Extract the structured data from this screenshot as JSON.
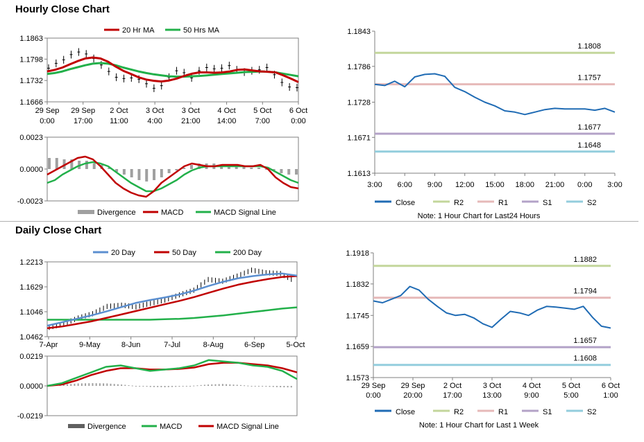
{
  "sections": {
    "hourly_title": "Hourly Close Chart",
    "daily_title": "Daily Close Chart"
  },
  "colors": {
    "ma20_hourly": "#c00000",
    "ma50_hourly": "#22b04a",
    "price": "#000000",
    "divergence": "#a0a0a0",
    "macd_red": "#c00000",
    "macd_green": "#22b04a",
    "day20": "#5b8fd0",
    "day50": "#c00000",
    "day200": "#22b04a",
    "close": "#1f6bb4",
    "r2": "#c3d69b",
    "r1": "#e6b9b8",
    "s1": "#b3a2c7",
    "s2": "#93cddd"
  },
  "chart_data": [
    {
      "id": "hourly_price",
      "type": "line",
      "legend": [
        "20 Hr MA",
        "50 Hrs MA"
      ],
      "yticks": [
        "1.1863",
        "1.1798",
        "1.1732",
        "1.1666"
      ],
      "ylim": [
        1.1666,
        1.1863
      ],
      "xticks": [
        [
          "29 Sep",
          "0:00"
        ],
        [
          "29 Sep",
          "17:00"
        ],
        [
          "2 Oct",
          "11:00"
        ],
        [
          "3 Oct",
          "4:00"
        ],
        [
          "3 Oct",
          "21:00"
        ],
        [
          "4 Oct",
          "14:00"
        ],
        [
          "5 Oct",
          "7:00"
        ],
        [
          "6 Oct",
          "0:00"
        ]
      ],
      "series": [
        {
          "name": "20 Hr MA",
          "values": [
            1.176,
            1.1765,
            1.1772,
            1.1782,
            1.1792,
            1.18,
            1.1803,
            1.18,
            1.179,
            1.1775,
            1.1762,
            1.1752,
            1.1742,
            1.1735,
            1.1731,
            1.1729,
            1.1732,
            1.1738,
            1.1746,
            1.1753,
            1.1757,
            1.1757,
            1.1756,
            1.1757,
            1.176,
            1.1765,
            1.1766,
            1.1763,
            1.176,
            1.1759,
            1.1757,
            1.1748,
            1.1738,
            1.1727
          ]
        },
        {
          "name": "50 Hrs MA",
          "values": [
            1.1752,
            1.1755,
            1.176,
            1.1767,
            1.1773,
            1.1779,
            1.1784,
            1.1786,
            1.1784,
            1.1779,
            1.1772,
            1.1766,
            1.176,
            1.1755,
            1.1751,
            1.1748,
            1.1745,
            1.1744,
            1.1744,
            1.1745,
            1.1746,
            1.1748,
            1.175,
            1.1752,
            1.1754,
            1.1756,
            1.1758,
            1.1759,
            1.176,
            1.1759,
            1.1757,
            1.1753,
            1.1749,
            1.1745
          ]
        },
        {
          "name": "price",
          "values": [
            1.177,
            1.1785,
            1.1796,
            1.1812,
            1.182,
            1.1814,
            1.18,
            1.178,
            1.176,
            1.1742,
            1.1738,
            1.174,
            1.1736,
            1.1722,
            1.1708,
            1.1716,
            1.1742,
            1.1762,
            1.1756,
            1.174,
            1.1762,
            1.1772,
            1.1768,
            1.177,
            1.1778,
            1.1765,
            1.1758,
            1.1762,
            1.1765,
            1.1772,
            1.175,
            1.1726,
            1.1712,
            1.171
          ]
        }
      ]
    },
    {
      "id": "hourly_macd",
      "type": "line",
      "legend": [
        "Divergence",
        "MACD",
        "MACD Signal Line"
      ],
      "yticks": [
        "0.0023",
        "0.0000",
        "-0.0023"
      ],
      "ylim": [
        -0.0023,
        0.0023
      ],
      "series": [
        {
          "name": "Divergence",
          "values": [
            0.0008,
            0.0008,
            0.0007,
            0.0007,
            0.0006,
            0.0006,
            0.0004,
            0.0003,
            0.0001,
            -0.0002,
            -0.0004,
            -0.0006,
            -0.0008,
            -0.0009,
            -0.0008,
            -0.0006,
            -0.0003,
            -0.0001,
            0.0001,
            0.0003,
            0.0004,
            0.0004,
            0.0004,
            0.0003,
            0.0003,
            0.0002,
            0.0002,
            0.0001,
            0.0001,
            0.0,
            -0.0001,
            -0.0003,
            -0.0004,
            -0.0004
          ]
        },
        {
          "name": "MACD",
          "values": [
            -0.0004,
            -0.0001,
            0.0002,
            0.0005,
            0.0008,
            0.0009,
            0.0007,
            0.0002,
            -0.0004,
            -0.001,
            -0.0014,
            -0.0017,
            -0.0019,
            -0.002,
            -0.0016,
            -0.001,
            -0.0006,
            -0.0002,
            0.0002,
            0.0004,
            0.0003,
            0.0002,
            0.0002,
            0.0003,
            0.0003,
            0.0003,
            0.0002,
            0.0002,
            0.0003,
            0.0,
            -0.0006,
            -0.001,
            -0.0013,
            -0.0014
          ]
        },
        {
          "name": "MACD Signal Line",
          "values": [
            -0.001,
            -0.0008,
            -0.0004,
            -0.0001,
            0.0002,
            0.0004,
            0.0005,
            0.0004,
            0.0002,
            -0.0002,
            -0.0006,
            -0.001,
            -0.0013,
            -0.0016,
            -0.0016,
            -0.0014,
            -0.0011,
            -0.0008,
            -0.0004,
            -0.0001,
            0.0001,
            0.0002,
            0.0002,
            0.0002,
            0.0002,
            0.0002,
            0.0002,
            0.0002,
            0.0002,
            0.0001,
            -0.0002,
            -0.0005,
            -0.0008,
            -0.001
          ]
        }
      ]
    },
    {
      "id": "hourly_close",
      "type": "line",
      "yticks": [
        "1.1843",
        "1.1786",
        "1.1728",
        "1.1671",
        "1.1613"
      ],
      "ylim": [
        1.1613,
        1.1843
      ],
      "xticks": [
        "3:00",
        "6:00",
        "9:00",
        "12:00",
        "15:00",
        "18:00",
        "21:00",
        "0:00",
        "3:00"
      ],
      "levels": [
        {
          "name": "R2",
          "value": 1.1808,
          "label": "1.1808"
        },
        {
          "name": "R1",
          "value": 1.1757,
          "label": "1.1757"
        },
        {
          "name": "S1",
          "value": 1.1677,
          "label": "1.1677"
        },
        {
          "name": "S2",
          "value": 1.1648,
          "label": "1.1648"
        }
      ],
      "series": [
        {
          "name": "Close",
          "values": [
            1.1757,
            1.1755,
            1.1762,
            1.1753,
            1.1769,
            1.1773,
            1.1774,
            1.177,
            1.1752,
            1.1745,
            1.1736,
            1.1728,
            1.1722,
            1.1714,
            1.1712,
            1.1708,
            1.1712,
            1.1716,
            1.1718,
            1.1717,
            1.1717,
            1.1717,
            1.1715,
            1.1718,
            1.1712
          ]
        }
      ],
      "legend": [
        "Close",
        "R2",
        "R1",
        "S1",
        "S2"
      ],
      "note": "Note: 1 Hour Chart for Last24 Hours"
    },
    {
      "id": "daily_price",
      "type": "line",
      "legend": [
        "20 Day",
        "50 Day",
        "200 Day"
      ],
      "yticks": [
        "1.2213",
        "1.1629",
        "1.1046",
        "1.0462"
      ],
      "ylim": [
        1.0462,
        1.2213
      ],
      "xticks": [
        "7-Apr",
        "9-May",
        "8-Jun",
        "7-Jul",
        "8-Aug",
        "6-Sep",
        "5-Oct"
      ],
      "series": [
        {
          "name": "20 Day",
          "values": [
            1.072,
            1.08,
            1.088,
            1.096,
            1.105,
            1.115,
            1.125,
            1.132,
            1.138,
            1.145,
            1.154,
            1.165,
            1.175,
            1.183,
            1.188,
            1.192,
            1.194,
            1.189
          ]
        },
        {
          "name": "50 Day",
          "values": [
            1.066,
            1.07,
            1.076,
            1.082,
            1.09,
            1.098,
            1.106,
            1.114,
            1.122,
            1.13,
            1.139,
            1.149,
            1.159,
            1.168,
            1.175,
            1.181,
            1.186,
            1.188
          ]
        },
        {
          "name": "200 Day",
          "values": [
            1.086,
            1.086,
            1.086,
            1.086,
            1.086,
            1.086,
            1.086,
            1.086,
            1.087,
            1.088,
            1.09,
            1.093,
            1.096,
            1.1,
            1.104,
            1.108,
            1.112,
            1.115
          ]
        },
        {
          "name": "price",
          "values": [
            1.068,
            1.076,
            1.09,
            1.1,
            1.117,
            1.12,
            1.116,
            1.124,
            1.132,
            1.144,
            1.155,
            1.18,
            1.176,
            1.188,
            1.202,
            1.196,
            1.194,
            1.176
          ]
        }
      ]
    },
    {
      "id": "daily_macd",
      "type": "line",
      "legend": [
        "Divergence",
        "MACD",
        "MACD Signal Line"
      ],
      "yticks": [
        "0.0219",
        "0.0000",
        "-0.0219"
      ],
      "ylim": [
        -0.0219,
        0.0219
      ],
      "series": [
        {
          "name": "Divergence",
          "values": [
            0.0002,
            0.001,
            0.0018,
            0.002,
            0.0018,
            0.001,
            0.0,
            -0.0008,
            -0.001,
            -0.0006,
            0.0002,
            0.001,
            0.0014,
            0.0008,
            0.0,
            -0.0006,
            -0.001,
            -0.0012
          ]
        },
        {
          "name": "MACD",
          "values": [
            0.0,
            0.002,
            0.006,
            0.01,
            0.014,
            0.015,
            0.013,
            0.011,
            0.012,
            0.013,
            0.015,
            0.019,
            0.018,
            0.017,
            0.015,
            0.014,
            0.011,
            0.005
          ]
        },
        {
          "name": "MACD Signal Line",
          "values": [
            0.0,
            0.001,
            0.004,
            0.008,
            0.011,
            0.013,
            0.013,
            0.012,
            0.012,
            0.0125,
            0.0135,
            0.016,
            0.017,
            0.017,
            0.016,
            0.015,
            0.013,
            0.01
          ]
        }
      ]
    },
    {
      "id": "daily_close",
      "type": "line",
      "yticks": [
        "1.1918",
        "1.1832",
        "1.1745",
        "1.1659",
        "1.1573"
      ],
      "ylim": [
        1.1573,
        1.1918
      ],
      "xticks": [
        [
          "29 Sep",
          "0:00"
        ],
        [
          "29 Sep",
          "20:00"
        ],
        [
          "2 Oct",
          "17:00"
        ],
        [
          "3 Oct",
          "13:00"
        ],
        [
          "4 Oct",
          "9:00"
        ],
        [
          "5 Oct",
          "5:00"
        ],
        [
          "6 Oct",
          "1:00"
        ]
      ],
      "levels": [
        {
          "name": "R2",
          "value": 1.1882,
          "label": "1.1882"
        },
        {
          "name": "R1",
          "value": 1.1794,
          "label": "1.1794"
        },
        {
          "name": "S1",
          "value": 1.1657,
          "label": "1.1657"
        },
        {
          "name": "S2",
          "value": 1.1608,
          "label": "1.1608"
        }
      ],
      "series": [
        {
          "name": "Close",
          "values": [
            1.1785,
            1.178,
            1.179,
            1.18,
            1.1825,
            1.1815,
            1.179,
            1.177,
            1.1752,
            1.1745,
            1.1748,
            1.1738,
            1.1722,
            1.1712,
            1.1735,
            1.1756,
            1.1752,
            1.1745,
            1.176,
            1.177,
            1.1768,
            1.1765,
            1.1762,
            1.177,
            1.174,
            1.1715,
            1.171
          ]
        }
      ],
      "legend": [
        "Close",
        "R2",
        "R1",
        "S1",
        "S2"
      ],
      "note": "Note: 1 Hour Chart for Last 1 Week"
    }
  ]
}
